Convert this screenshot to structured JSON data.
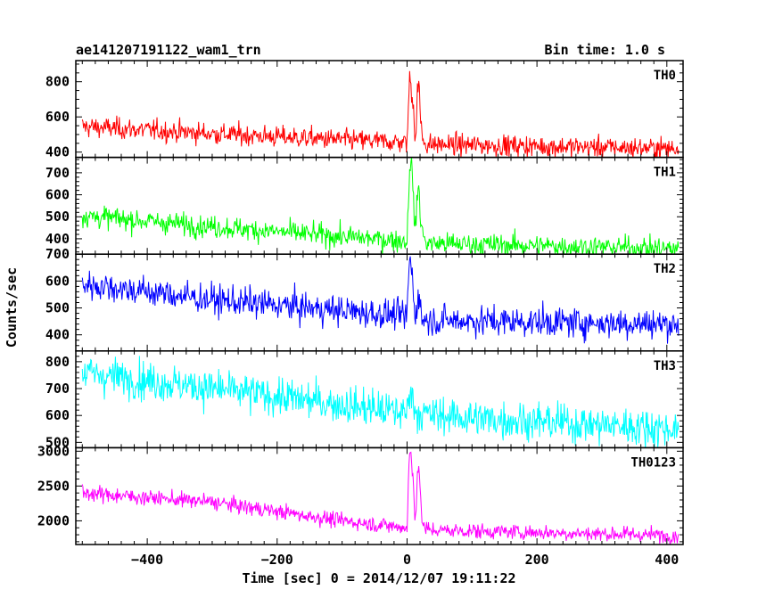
{
  "header": {
    "title": "ae141207191122_wam1_trn",
    "bin_time": "Bin time: 1.0 s"
  },
  "chart_data": {
    "type": "line",
    "xlabel": "Time [sec] 0 = 2014/12/07 19:11:22",
    "ylabel": "Counts/sec",
    "xlim": [
      -510,
      425
    ],
    "xticks": [
      -400,
      -200,
      0,
      200,
      400
    ],
    "x_start": -500,
    "x_end": 418,
    "bin": 1.0,
    "grid": false,
    "panels": [
      {
        "name": "TH0",
        "color": "#ff0000",
        "ylim": [
          370,
          920
        ],
        "yticks": [
          400,
          600,
          800
        ],
        "trend": [
          [
            -500,
            545
          ],
          [
            -300,
            505
          ],
          [
            -100,
            470
          ],
          [
            0,
            455
          ],
          [
            20,
            445
          ],
          [
            418,
            420
          ]
        ],
        "noise": 30,
        "burst": [
          [
            0,
            460
          ],
          [
            2,
            650
          ],
          [
            4,
            820
          ],
          [
            6,
            780
          ],
          [
            8,
            690
          ],
          [
            10,
            700
          ],
          [
            12,
            480
          ],
          [
            14,
            520
          ],
          [
            16,
            750
          ],
          [
            18,
            820
          ],
          [
            20,
            620
          ],
          [
            24,
            470
          ],
          [
            30,
            450
          ]
        ]
      },
      {
        "name": "TH1",
        "color": "#00ff00",
        "ylim": [
          330,
          770
        ],
        "yticks": [
          400,
          500,
          600,
          700
        ],
        "trend": [
          [
            -500,
            505
          ],
          [
            -300,
            455
          ],
          [
            -100,
            410
          ],
          [
            0,
            390
          ],
          [
            20,
            380
          ],
          [
            418,
            355
          ]
        ],
        "noise": 25,
        "burst": [
          [
            0,
            390
          ],
          [
            2,
            560
          ],
          [
            4,
            730
          ],
          [
            6,
            760
          ],
          [
            8,
            690
          ],
          [
            10,
            580
          ],
          [
            12,
            460
          ],
          [
            14,
            470
          ],
          [
            16,
            610
          ],
          [
            18,
            640
          ],
          [
            20,
            520
          ],
          [
            24,
            420
          ],
          [
            30,
            385
          ]
        ]
      },
      {
        "name": "TH2",
        "color": "#0000ff",
        "ylim": [
          340,
          700
        ],
        "yticks": [
          400,
          500,
          600,
          700
        ],
        "trend": [
          [
            -500,
            590
          ],
          [
            -300,
            530
          ],
          [
            -100,
            490
          ],
          [
            0,
            470
          ],
          [
            20,
            455
          ],
          [
            418,
            440
          ]
        ],
        "noise": 28,
        "burst": [
          [
            0,
            470
          ],
          [
            2,
            600
          ],
          [
            4,
            690
          ],
          [
            6,
            660
          ],
          [
            8,
            610
          ],
          [
            10,
            560
          ],
          [
            12,
            470
          ],
          [
            14,
            480
          ],
          [
            16,
            540
          ],
          [
            18,
            560
          ],
          [
            20,
            500
          ],
          [
            24,
            460
          ],
          [
            30,
            455
          ]
        ]
      },
      {
        "name": "TH3",
        "color": "#00ffff",
        "ylim": [
          480,
          840
        ],
        "yticks": [
          500,
          600,
          700,
          800
        ],
        "trend": [
          [
            -500,
            760
          ],
          [
            -300,
            700
          ],
          [
            -100,
            640
          ],
          [
            0,
            610
          ],
          [
            100,
            590
          ],
          [
            418,
            550
          ]
        ],
        "noise": 35,
        "burst": [
          [
            0,
            610
          ],
          [
            3,
            680
          ],
          [
            5,
            720
          ],
          [
            8,
            660
          ],
          [
            12,
            620
          ],
          [
            20,
            610
          ]
        ]
      },
      {
        "name": "TH0123",
        "color": "#ff00ff",
        "ylim": [
          1660,
          3050
        ],
        "yticks": [
          2000,
          2500,
          3000
        ],
        "trend": [
          [
            -500,
            2400
          ],
          [
            -300,
            2270
          ],
          [
            -100,
            2000
          ],
          [
            0,
            1900
          ],
          [
            20,
            1870
          ],
          [
            418,
            1790
          ]
        ],
        "noise": 55,
        "burst": [
          [
            0,
            1900
          ],
          [
            2,
            2500
          ],
          [
            4,
            3000
          ],
          [
            6,
            2950
          ],
          [
            8,
            2700
          ],
          [
            10,
            2550
          ],
          [
            12,
            2100
          ],
          [
            14,
            2150
          ],
          [
            16,
            2700
          ],
          [
            18,
            2850
          ],
          [
            20,
            2400
          ],
          [
            24,
            1950
          ],
          [
            30,
            1870
          ]
        ]
      }
    ]
  }
}
